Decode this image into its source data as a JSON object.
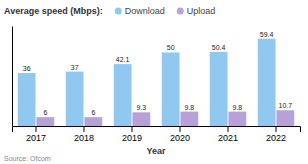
{
  "chart_data": {
    "type": "bar",
    "title": "Average speed (Mbps):",
    "xlabel": "Year",
    "categories": [
      "2017",
      "2018",
      "2019",
      "2020",
      "2021",
      "2022"
    ],
    "series": [
      {
        "name": "Download",
        "color": "#90c8f0",
        "values": [
          36,
          37,
          42.1,
          50,
          50.4,
          59.4
        ]
      },
      {
        "name": "Upload",
        "color": "#b8a0d8",
        "values": [
          6,
          6,
          9.3,
          9.8,
          9.8,
          10.7
        ]
      }
    ],
    "ylim": [
      0,
      68
    ],
    "tick_labels": "x",
    "data_labels": true,
    "grid": false,
    "legend": "top",
    "annotations": [
      "Source: Ofcom"
    ]
  }
}
